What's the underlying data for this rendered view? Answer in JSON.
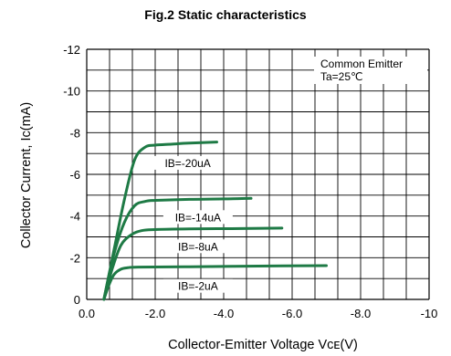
{
  "chart_data": {
    "type": "line",
    "title": "Fig.2  Static characteristics",
    "xlabel": "Collector-Emitter Voltage Vᴄᴇ(V)",
    "ylabel": "Collector Current, Ic(mA)",
    "xlim": [
      0,
      -10
    ],
    "ylim": [
      0,
      -12
    ],
    "x_ticks": [
      "0.0",
      "-2.0",
      "-4.0",
      "-6.0",
      "-8.0",
      "-10"
    ],
    "y_ticks": [
      "0",
      "-2",
      "-4",
      "-6",
      "-8",
      "-10",
      "-12"
    ],
    "grid": true,
    "annotation": [
      "Common Emitter",
      "Ta=25℃"
    ],
    "color": "#1e7a45",
    "series": [
      {
        "label": "IB=-20uA",
        "x": [
          -0.5,
          -0.8,
          -1.1,
          -1.4,
          -1.7,
          -2.0,
          -2.5,
          -3.0,
          -3.8
        ],
        "y": [
          0,
          -2.4,
          -4.8,
          -6.7,
          -7.3,
          -7.4,
          -7.45,
          -7.5,
          -7.55
        ],
        "label_at": [
          -2.95,
          -6.55
        ]
      },
      {
        "label": "IB=-14uA",
        "x": [
          -0.5,
          -0.8,
          -1.1,
          -1.4,
          -1.7,
          -2.0,
          -3.0,
          -4.0,
          -4.8
        ],
        "y": [
          0,
          -2.2,
          -3.7,
          -4.5,
          -4.7,
          -4.75,
          -4.8,
          -4.82,
          -4.85
        ],
        "label_at": [
          -3.25,
          -3.95
        ]
      },
      {
        "label": "IB=-8uA",
        "x": [
          -0.5,
          -0.75,
          -1.0,
          -1.3,
          -1.6,
          -2.0,
          -3.0,
          -4.5,
          -5.7
        ],
        "y": [
          0,
          -1.5,
          -2.6,
          -3.1,
          -3.3,
          -3.35,
          -3.38,
          -3.4,
          -3.42
        ],
        "label_at": [
          -3.25,
          -2.55
        ]
      },
      {
        "label": "IB=-2uA",
        "x": [
          -0.5,
          -0.65,
          -0.8,
          -1.0,
          -1.2,
          -1.5,
          -3.0,
          -5.0,
          -7.0
        ],
        "y": [
          0,
          -0.7,
          -1.2,
          -1.45,
          -1.52,
          -1.55,
          -1.57,
          -1.6,
          -1.62
        ],
        "label_at": [
          -3.25,
          -0.65
        ]
      }
    ]
  }
}
